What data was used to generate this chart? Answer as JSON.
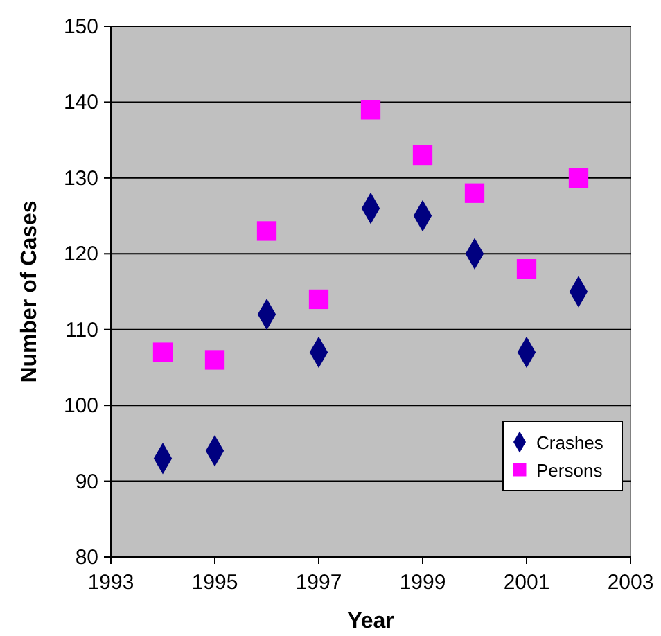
{
  "chart_data": {
    "type": "scatter",
    "xlabel": "Year",
    "ylabel": "Number of Cases",
    "x": [
      1994,
      1995,
      1996,
      1997,
      1998,
      1999,
      2000,
      2001,
      2002
    ],
    "series": [
      {
        "name": "Crashes",
        "color": "#000080",
        "marker": "diamond",
        "values": [
          93,
          94,
          112,
          107,
          126,
          125,
          120,
          107,
          115
        ]
      },
      {
        "name": "Persons",
        "color": "#ff00ff",
        "marker": "square",
        "values": [
          107,
          106,
          123,
          114,
          139,
          133,
          128,
          118,
          130
        ]
      }
    ],
    "xlim": [
      1993,
      2003
    ],
    "xticks": [
      1993,
      1995,
      1997,
      1999,
      2001,
      2003
    ],
    "ylim": [
      80,
      150
    ],
    "yticks": [
      80,
      90,
      100,
      110,
      120,
      130,
      140,
      150
    ],
    "grid": "y",
    "legend": "bottom right"
  }
}
